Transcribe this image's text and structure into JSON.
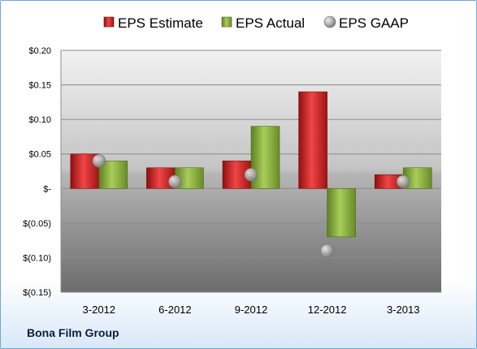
{
  "chart_data": {
    "type": "bar",
    "categories": [
      "3-2012",
      "6-2012",
      "9-2012",
      "12-2012",
      "3-2013"
    ],
    "series": [
      {
        "name": "EPS Estimate",
        "values": [
          0.05,
          0.03,
          0.04,
          0.14,
          0.02
        ],
        "color": "#cc1f1f",
        "kind": "bar"
      },
      {
        "name": "EPS Actual",
        "values": [
          0.04,
          0.03,
          0.09,
          -0.07,
          0.03
        ],
        "color": "#8db33a",
        "kind": "bar"
      },
      {
        "name": "EPS GAAP",
        "values": [
          0.04,
          0.01,
          0.02,
          -0.09,
          0.01
        ],
        "color": "#9a9a9a",
        "kind": "marker"
      }
    ],
    "ylim": [
      -0.15,
      0.2
    ],
    "yticks": [
      0.2,
      0.15,
      0.1,
      0.05,
      0,
      -0.05,
      -0.1,
      -0.15
    ],
    "ytick_labels": [
      "$0.20",
      "$0.15",
      "$0.10",
      "$0.05",
      "$-",
      "$(0.05)",
      "$(0.10)",
      "$(0.15)"
    ],
    "grid": true,
    "legend_position": "top"
  },
  "footer": {
    "company": "Bona Film Group"
  }
}
